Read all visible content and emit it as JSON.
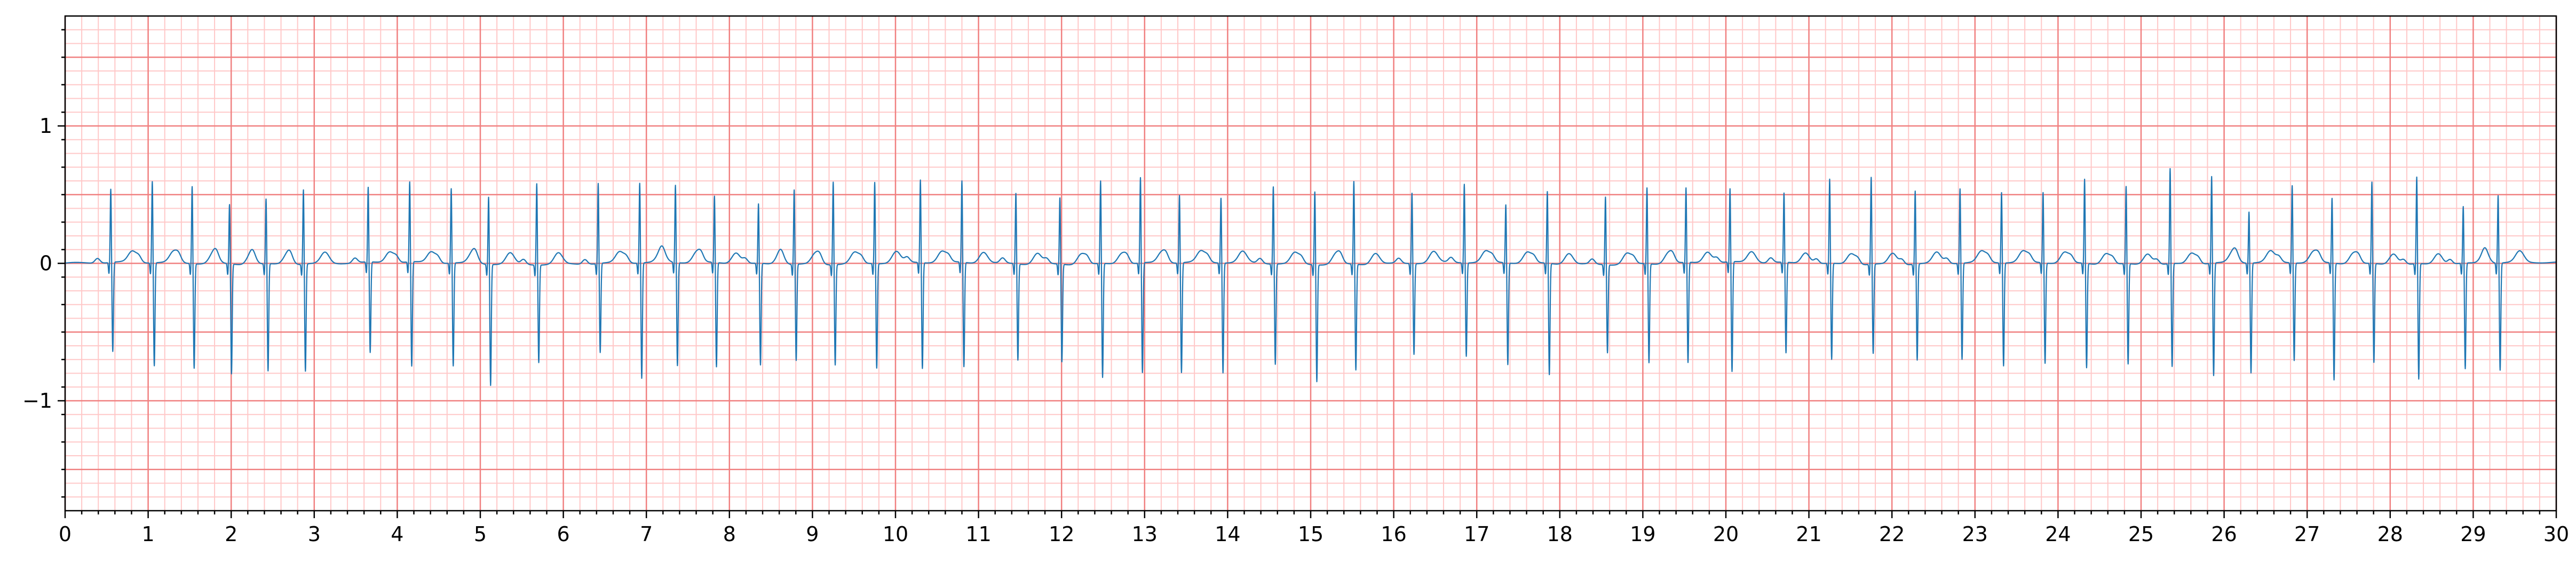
{
  "chart_data": {
    "type": "line",
    "title": "",
    "xlabel": "",
    "ylabel": "",
    "xlim": [
      0,
      30
    ],
    "ylim": [
      -1.8,
      1.8
    ],
    "x_ticks": [
      "0",
      "1",
      "2",
      "3",
      "4",
      "5",
      "6",
      "7",
      "8",
      "9",
      "10",
      "11",
      "12",
      "13",
      "14",
      "15",
      "16",
      "17",
      "18",
      "19",
      "20",
      "21",
      "22",
      "23",
      "24",
      "25",
      "26",
      "27",
      "28",
      "29",
      "30"
    ],
    "y_ticks": [
      {
        "value": 1,
        "label": "1"
      },
      {
        "value": 0,
        "label": "0"
      },
      {
        "value": -1,
        "label": "−1"
      }
    ],
    "grid": {
      "major_step_x": 1,
      "minor_step_x": 0.2,
      "major_step_y": 0.5,
      "minor_step_y": 0.1
    },
    "series": [
      {
        "name": "ECG",
        "baseline": 0,
        "t_wave_amplitude": 0.08,
        "beats": [
          {
            "t": 0.55,
            "r": 0.54,
            "s": -0.65
          },
          {
            "t": 1.05,
            "r": 0.6,
            "s": -0.75
          },
          {
            "t": 1.53,
            "r": 0.57,
            "s": -0.76
          },
          {
            "t": 1.98,
            "r": 0.44,
            "s": -0.8
          },
          {
            "t": 2.42,
            "r": 0.48,
            "s": -0.78
          },
          {
            "t": 2.87,
            "r": 0.55,
            "s": -0.78
          },
          {
            "t": 3.65,
            "r": 0.55,
            "s": -0.66
          },
          {
            "t": 4.15,
            "r": 0.59,
            "s": -0.76
          },
          {
            "t": 4.65,
            "r": 0.55,
            "s": -0.75
          },
          {
            "t": 5.1,
            "r": 0.5,
            "s": -0.88
          },
          {
            "t": 5.68,
            "r": 0.6,
            "s": -0.71
          },
          {
            "t": 6.42,
            "r": 0.59,
            "s": -0.65
          },
          {
            "t": 6.92,
            "r": 0.59,
            "s": -0.84
          },
          {
            "t": 7.35,
            "r": 0.57,
            "s": -0.75
          },
          {
            "t": 7.82,
            "r": 0.49,
            "s": -0.76
          },
          {
            "t": 8.35,
            "r": 0.44,
            "s": -0.74
          },
          {
            "t": 8.78,
            "r": 0.55,
            "s": -0.7
          },
          {
            "t": 9.25,
            "r": 0.61,
            "s": -0.73
          },
          {
            "t": 9.75,
            "r": 0.6,
            "s": -0.76
          },
          {
            "t": 10.3,
            "r": 0.61,
            "s": -0.77
          },
          {
            "t": 10.8,
            "r": 0.6,
            "s": -0.76
          },
          {
            "t": 11.45,
            "r": 0.52,
            "s": -0.7
          },
          {
            "t": 11.98,
            "r": 0.49,
            "s": -0.71
          },
          {
            "t": 12.47,
            "r": 0.61,
            "s": -0.83
          },
          {
            "t": 12.95,
            "r": 0.63,
            "s": -0.8
          },
          {
            "t": 13.42,
            "r": 0.5,
            "s": -0.8
          },
          {
            "t": 13.92,
            "r": 0.48,
            "s": -0.8
          },
          {
            "t": 14.55,
            "r": 0.57,
            "s": -0.73
          },
          {
            "t": 15.05,
            "r": 0.54,
            "s": -0.85
          },
          {
            "t": 15.52,
            "r": 0.61,
            "s": -0.77
          },
          {
            "t": 16.22,
            "r": 0.52,
            "s": -0.66
          },
          {
            "t": 16.85,
            "r": 0.58,
            "s": -0.68
          },
          {
            "t": 17.35,
            "r": 0.43,
            "s": -0.74
          },
          {
            "t": 17.85,
            "r": 0.53,
            "s": -0.81
          },
          {
            "t": 18.55,
            "r": 0.5,
            "s": -0.64
          },
          {
            "t": 19.05,
            "r": 0.56,
            "s": -0.72
          },
          {
            "t": 19.52,
            "r": 0.55,
            "s": -0.73
          },
          {
            "t": 20.05,
            "r": 0.54,
            "s": -0.8
          },
          {
            "t": 20.7,
            "r": 0.51,
            "s": -0.66
          },
          {
            "t": 21.25,
            "r": 0.62,
            "s": -0.7
          },
          {
            "t": 21.75,
            "r": 0.64,
            "s": -0.65
          },
          {
            "t": 22.28,
            "r": 0.54,
            "s": -0.7
          },
          {
            "t": 22.82,
            "r": 0.55,
            "s": -0.7
          },
          {
            "t": 23.32,
            "r": 0.52,
            "s": -0.75
          },
          {
            "t": 23.82,
            "r": 0.52,
            "s": -0.73
          },
          {
            "t": 24.32,
            "r": 0.62,
            "s": -0.76
          },
          {
            "t": 24.82,
            "r": 0.57,
            "s": -0.73
          },
          {
            "t": 25.35,
            "r": 0.7,
            "s": -0.75
          },
          {
            "t": 25.85,
            "r": 0.64,
            "s": -0.82
          },
          {
            "t": 26.3,
            "r": 0.38,
            "s": -0.8
          },
          {
            "t": 26.82,
            "r": 0.57,
            "s": -0.71
          },
          {
            "t": 27.3,
            "r": 0.48,
            "s": -0.85
          },
          {
            "t": 27.78,
            "r": 0.6,
            "s": -0.72
          },
          {
            "t": 28.32,
            "r": 0.64,
            "s": -0.84
          },
          {
            "t": 28.88,
            "r": 0.42,
            "s": -0.77
          },
          {
            "t": 29.3,
            "r": 0.5,
            "s": -0.78
          }
        ]
      }
    ]
  },
  "style": {
    "background": "#ffffff",
    "major_grid_color": "#f08080",
    "minor_grid_color": "#ffc8c8",
    "line_color": "#1f77b4",
    "axis_color": "#000000"
  }
}
